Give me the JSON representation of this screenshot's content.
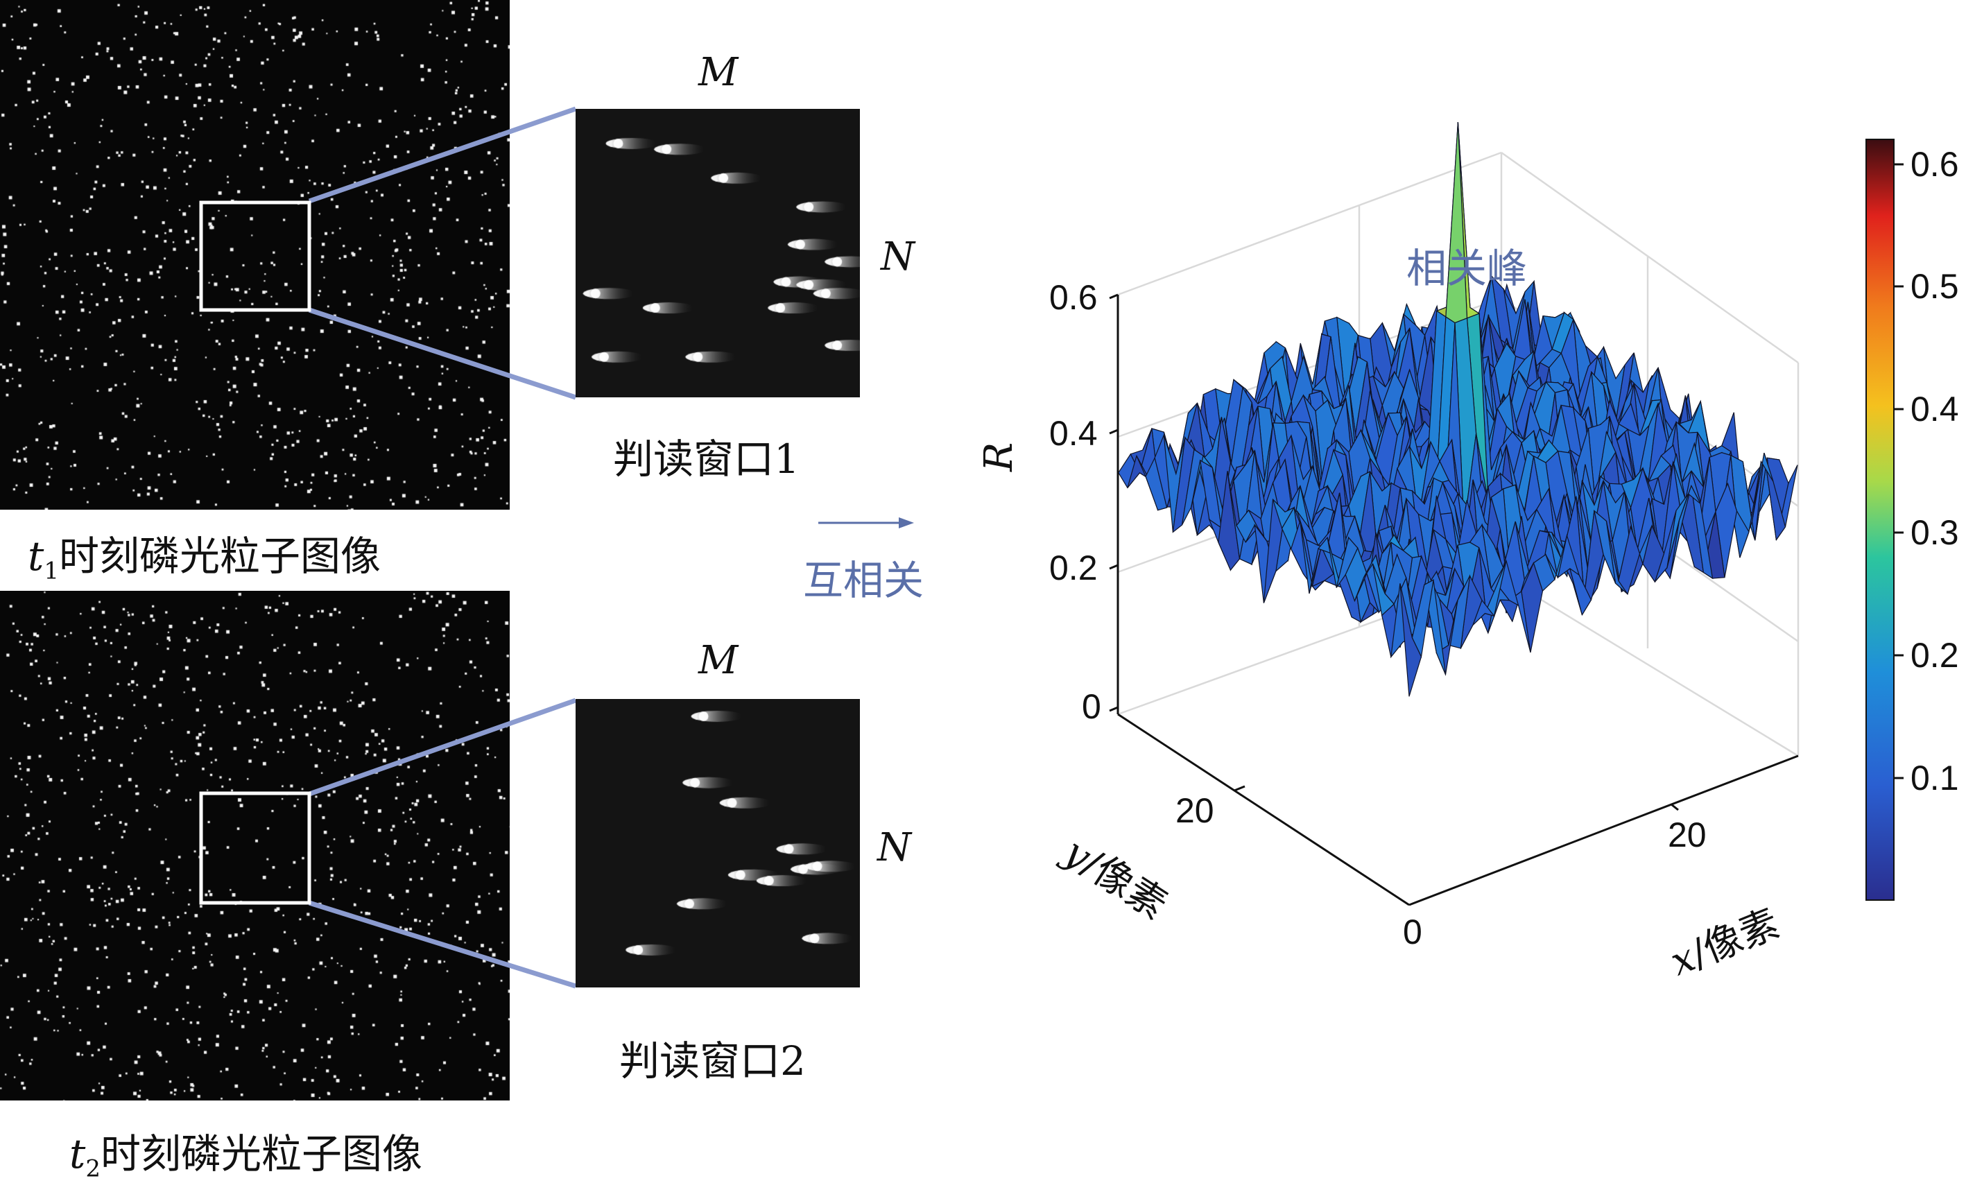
{
  "panel_top": {
    "caption_var": "t",
    "caption_sub": "1",
    "caption_text": "时刻磷光粒子图像",
    "window_label": "判读窗口1",
    "label_m": "M",
    "label_n": "N",
    "particles": [
      [
        0.15,
        0.12
      ],
      [
        0.32,
        0.14
      ],
      [
        0.52,
        0.24
      ],
      [
        0.79,
        0.47
      ],
      [
        0.82,
        0.34
      ],
      [
        0.07,
        0.64
      ],
      [
        0.28,
        0.69
      ],
      [
        0.74,
        0.6
      ],
      [
        0.72,
        0.69
      ],
      [
        0.82,
        0.61
      ],
      [
        0.92,
        0.53
      ],
      [
        0.88,
        0.64
      ],
      [
        0.92,
        0.82
      ],
      [
        0.1,
        0.86
      ],
      [
        0.43,
        0.86
      ]
    ]
  },
  "panel_bottom": {
    "caption_var": "t",
    "caption_sub": "2",
    "caption_text": "时刻磷光粒子图像",
    "window_label": "判读窗口2",
    "label_m": "M",
    "label_n": "N",
    "particles": [
      [
        0.45,
        0.06
      ],
      [
        0.42,
        0.29
      ],
      [
        0.55,
        0.36
      ],
      [
        0.75,
        0.52
      ],
      [
        0.8,
        0.59
      ],
      [
        0.58,
        0.61
      ],
      [
        0.68,
        0.63
      ],
      [
        0.85,
        0.58
      ],
      [
        0.4,
        0.71
      ],
      [
        0.22,
        0.87
      ],
      [
        0.84,
        0.83
      ]
    ]
  },
  "arrow_label": "互相关",
  "plot": {
    "peak_label": "相关峰",
    "z_label": "R",
    "x_label_var": "x",
    "x_label_text": "/像素",
    "y_label_var": "y",
    "y_label_text": "/像素",
    "z_ticks": [
      "0.6",
      "0.4",
      "0.2",
      "0"
    ],
    "y_tick": "20",
    "x_tick": "20",
    "origin_tick": "0"
  },
  "colorbar": {
    "ticks": [
      "0.6",
      "0.5",
      "0.4",
      "0.3",
      "0.2",
      "0.1"
    ],
    "colors": [
      "#3c0d11",
      "#e0221c",
      "#f4c11e",
      "#2cc59e",
      "#1f8fd9",
      "#2a2e8f"
    ]
  }
}
